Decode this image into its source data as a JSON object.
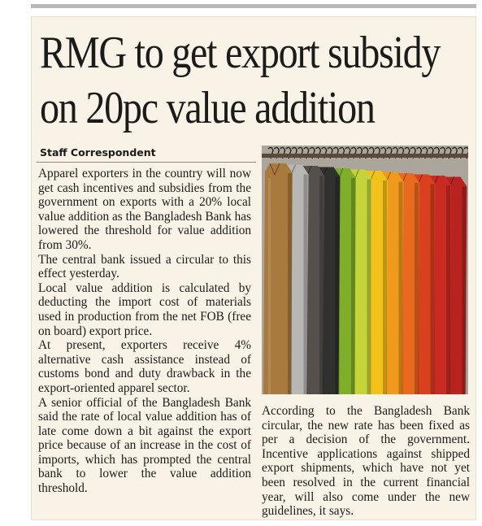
{
  "article": {
    "headline": [
      "RMG to get export subsidy",
      "on 20pc value addition"
    ],
    "byline": "Staff Correspondent",
    "left_paragraphs": [
      "Apparel exporters in the country will now get cash incentives and subsidies from the government on exports with a 20% local value addition as the Bangladesh Bank has lowered the threshold for value addition from 30%.",
      "The central bank issued a circular to this effect yesterday.",
      "Local value addition is calculated by deducting the import cost of materials used in production from the net FOB (free on board) export price.",
      "At present, exporters receive 4% alternative cash assistance instead of customs bond and duty drawback in the export-oriented apparel sector.",
      "A senior official of the Bangladesh Bank said the rate of local value addition has of late come down a bit against the export price because of an increase in the cost of imports, which has prompted the central bank to lower the value addition threshold."
    ],
    "right_paragraphs": [
      "According to the Bangladesh Bank circular, the new rate has been fixed as per a decision of the government. Incentive applications against shipped export shipments, which have not yet been resolved in the current financial year, will also come under the new guidelines, it says."
    ]
  },
  "photo": {
    "subject": "clothes-rack-photo",
    "garment_colors": [
      "#a87a3e",
      "#b9b7b4",
      "#56504c",
      "#30302e",
      "#7fae2a",
      "#c5d43a",
      "#f2c21a",
      "#ef9a1c",
      "#e86a1e",
      "#d8401e",
      "#c92a22",
      "#b8231f"
    ],
    "rail_color": "#5a4a3c",
    "wall_color": "#e9e2d6"
  }
}
